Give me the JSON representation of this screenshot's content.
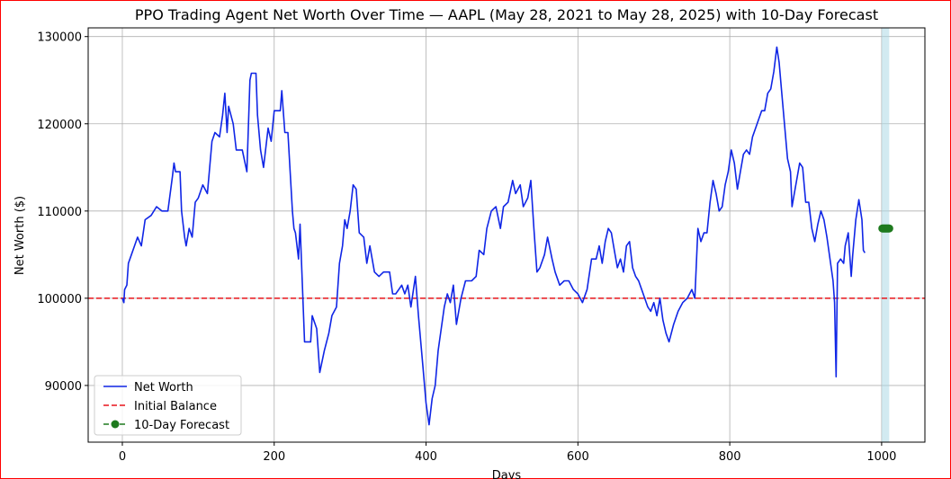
{
  "chart_data": {
    "type": "line",
    "title": "PPO Trading Agent Net Worth Over Time — AAPL (May 28, 2021 to May 28, 2025) with 10-Day Forecast",
    "xlabel": "Days",
    "ylabel": "Net Worth ($)",
    "xlim": [
      -45,
      1057
    ],
    "ylim": [
      83500,
      131000
    ],
    "xticks": [
      0,
      200,
      400,
      600,
      800,
      1000
    ],
    "yticks": [
      90000,
      100000,
      110000,
      120000,
      130000
    ],
    "grid": true,
    "legend_position": "lower-left",
    "forecast_band": [
      1000,
      1010
    ],
    "series": [
      {
        "name": "Net Worth",
        "color": "#1026e6",
        "style": "solid",
        "points": [
          [
            0,
            100000
          ],
          [
            2,
            99500
          ],
          [
            3,
            101000
          ],
          [
            6,
            101500
          ],
          [
            8,
            104000
          ],
          [
            12,
            105000
          ],
          [
            16,
            106000
          ],
          [
            20,
            107000
          ],
          [
            25,
            106000
          ],
          [
            30,
            109000
          ],
          [
            38,
            109500
          ],
          [
            45,
            110500
          ],
          [
            52,
            110000
          ],
          [
            60,
            110000
          ],
          [
            66,
            114000
          ],
          [
            68,
            115500
          ],
          [
            70,
            114500
          ],
          [
            76,
            114500
          ],
          [
            78,
            110000
          ],
          [
            82,
            107000
          ],
          [
            84,
            106000
          ],
          [
            88,
            108000
          ],
          [
            92,
            107000
          ],
          [
            96,
            111000
          ],
          [
            100,
            111500
          ],
          [
            106,
            113000
          ],
          [
            112,
            112000
          ],
          [
            118,
            118000
          ],
          [
            122,
            119000
          ],
          [
            128,
            118500
          ],
          [
            132,
            121000
          ],
          [
            135,
            123500
          ],
          [
            138,
            119000
          ],
          [
            140,
            122000
          ],
          [
            146,
            120000
          ],
          [
            150,
            117000
          ],
          [
            158,
            117000
          ],
          [
            164,
            114500
          ],
          [
            168,
            125000
          ],
          [
            170,
            125800
          ],
          [
            176,
            125800
          ],
          [
            178,
            121000
          ],
          [
            182,
            117000
          ],
          [
            186,
            115000
          ],
          [
            192,
            119500
          ],
          [
            196,
            118000
          ],
          [
            200,
            121500
          ],
          [
            208,
            121500
          ],
          [
            210,
            123800
          ],
          [
            214,
            119000
          ],
          [
            218,
            119000
          ],
          [
            224,
            110000
          ],
          [
            226,
            108000
          ],
          [
            228,
            107500
          ],
          [
            232,
            104500
          ],
          [
            234,
            108500
          ],
          [
            240,
            95000
          ],
          [
            248,
            95000
          ],
          [
            250,
            98000
          ],
          [
            256,
            96500
          ],
          [
            260,
            91500
          ],
          [
            266,
            94000
          ],
          [
            272,
            96000
          ],
          [
            276,
            98000
          ],
          [
            282,
            99000
          ],
          [
            286,
            104000
          ],
          [
            290,
            106000
          ],
          [
            293,
            109000
          ],
          [
            296,
            108000
          ],
          [
            300,
            110000
          ],
          [
            304,
            113000
          ],
          [
            308,
            112500
          ],
          [
            312,
            107500
          ],
          [
            318,
            107000
          ],
          [
            322,
            104000
          ],
          [
            326,
            106000
          ],
          [
            332,
            103000
          ],
          [
            338,
            102500
          ],
          [
            344,
            103000
          ],
          [
            352,
            103000
          ],
          [
            356,
            100500
          ],
          [
            360,
            100500
          ],
          [
            364,
            101000
          ],
          [
            368,
            101500
          ],
          [
            372,
            100500
          ],
          [
            376,
            101500
          ],
          [
            380,
            99000
          ],
          [
            386,
            102500
          ],
          [
            390,
            98000
          ],
          [
            396,
            92000
          ],
          [
            400,
            88000
          ],
          [
            404,
            85500
          ],
          [
            408,
            88500
          ],
          [
            412,
            90000
          ],
          [
            416,
            94000
          ],
          [
            420,
            96500
          ],
          [
            424,
            99000
          ],
          [
            428,
            100500
          ],
          [
            432,
            99500
          ],
          [
            436,
            101500
          ],
          [
            440,
            97000
          ],
          [
            446,
            100000
          ],
          [
            452,
            102000
          ],
          [
            460,
            102000
          ],
          [
            466,
            102500
          ],
          [
            470,
            105500
          ],
          [
            476,
            105000
          ],
          [
            480,
            108000
          ],
          [
            486,
            110000
          ],
          [
            492,
            110500
          ],
          [
            498,
            108000
          ],
          [
            502,
            110500
          ],
          [
            508,
            111000
          ],
          [
            514,
            113500
          ],
          [
            518,
            112000
          ],
          [
            524,
            113000
          ],
          [
            528,
            110500
          ],
          [
            534,
            111500
          ],
          [
            538,
            113500
          ],
          [
            542,
            108000
          ],
          [
            546,
            103000
          ],
          [
            550,
            103500
          ],
          [
            556,
            105000
          ],
          [
            560,
            107000
          ],
          [
            566,
            104500
          ],
          [
            570,
            103000
          ],
          [
            576,
            101500
          ],
          [
            582,
            102000
          ],
          [
            588,
            102000
          ],
          [
            594,
            101000
          ],
          [
            600,
            100500
          ],
          [
            606,
            99500
          ],
          [
            612,
            101000
          ],
          [
            618,
            104500
          ],
          [
            624,
            104500
          ],
          [
            628,
            106000
          ],
          [
            632,
            104000
          ],
          [
            636,
            106500
          ],
          [
            640,
            108000
          ],
          [
            644,
            107500
          ],
          [
            648,
            105500
          ],
          [
            652,
            103500
          ],
          [
            656,
            104500
          ],
          [
            660,
            103000
          ],
          [
            664,
            106000
          ],
          [
            668,
            106500
          ],
          [
            672,
            103500
          ],
          [
            676,
            102500
          ],
          [
            680,
            102000
          ],
          [
            684,
            101000
          ],
          [
            688,
            100000
          ],
          [
            692,
            99000
          ],
          [
            696,
            98500
          ],
          [
            700,
            99500
          ],
          [
            704,
            98000
          ],
          [
            708,
            100000
          ],
          [
            712,
            97500
          ],
          [
            716,
            96000
          ],
          [
            720,
            95000
          ],
          [
            726,
            97000
          ],
          [
            732,
            98500
          ],
          [
            738,
            99500
          ],
          [
            744,
            100000
          ],
          [
            750,
            101000
          ],
          [
            754,
            100000
          ],
          [
            758,
            108000
          ],
          [
            762,
            106500
          ],
          [
            766,
            107500
          ],
          [
            770,
            107500
          ],
          [
            774,
            111000
          ],
          [
            778,
            113500
          ],
          [
            782,
            112000
          ],
          [
            786,
            110000
          ],
          [
            790,
            110500
          ],
          [
            794,
            113000
          ],
          [
            798,
            114500
          ],
          [
            802,
            117000
          ],
          [
            806,
            115500
          ],
          [
            810,
            112500
          ],
          [
            814,
            114500
          ],
          [
            818,
            116500
          ],
          [
            822,
            117000
          ],
          [
            826,
            116500
          ],
          [
            830,
            118500
          ],
          [
            834,
            119500
          ],
          [
            838,
            120500
          ],
          [
            842,
            121500
          ],
          [
            846,
            121500
          ],
          [
            850,
            123500
          ],
          [
            854,
            124000
          ],
          [
            858,
            126000
          ],
          [
            862,
            128800
          ],
          [
            865,
            127000
          ],
          [
            868,
            124000
          ],
          [
            872,
            120000
          ],
          [
            876,
            116000
          ],
          [
            880,
            114500
          ],
          [
            882,
            110500
          ],
          [
            886,
            112500
          ],
          [
            890,
            114500
          ],
          [
            892,
            115500
          ],
          [
            896,
            115000
          ],
          [
            900,
            111000
          ],
          [
            904,
            111000
          ],
          [
            908,
            108000
          ],
          [
            912,
            106500
          ],
          [
            916,
            108500
          ],
          [
            920,
            110000
          ],
          [
            924,
            109000
          ],
          [
            928,
            107000
          ],
          [
            932,
            104500
          ],
          [
            936,
            102000
          ],
          [
            938,
            99500
          ],
          [
            940,
            91000
          ],
          [
            942,
            104000
          ],
          [
            946,
            104500
          ],
          [
            950,
            104000
          ],
          [
            952,
            106000
          ],
          [
            956,
            107500
          ],
          [
            960,
            102500
          ],
          [
            962,
            105000
          ],
          [
            966,
            109000
          ],
          [
            970,
            111300
          ],
          [
            974,
            109000
          ],
          [
            976,
            105500
          ],
          [
            978,
            105200
          ]
        ]
      },
      {
        "name": "Initial Balance",
        "color": "#e8141a",
        "style": "dashed",
        "y": 100000
      },
      {
        "name": "10-Day Forecast",
        "color": "#1e7a1e",
        "style": "dashed-markers",
        "x": [
          1001,
          1002,
          1003,
          1004,
          1005,
          1006,
          1007,
          1008,
          1009,
          1010
        ],
        "y": [
          108000,
          108000,
          108000,
          108000,
          108000,
          108000,
          108000,
          108000,
          108000,
          108000
        ]
      }
    ]
  }
}
